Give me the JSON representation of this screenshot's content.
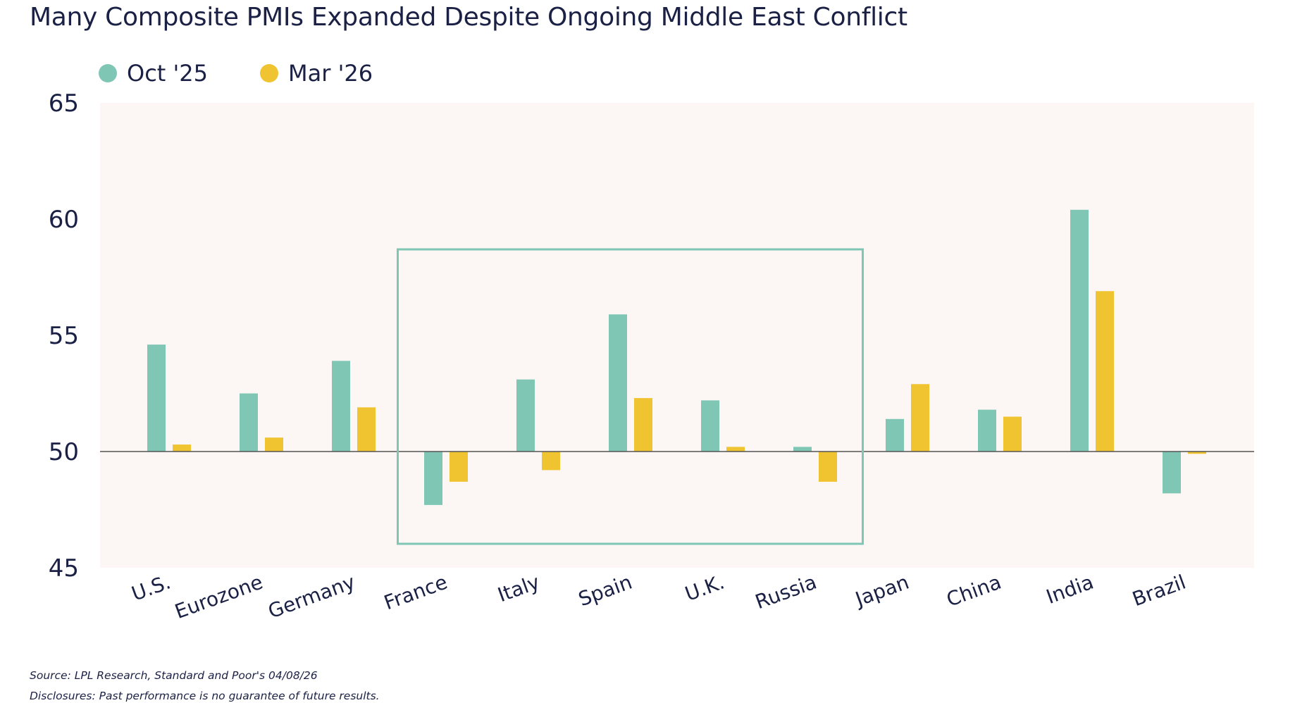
{
  "title": "Many Composite PMIs Expanded Despite Ongoing Middle East Conflict",
  "legend": [
    {
      "label": "Oct '25",
      "color": "#7fc7b4"
    },
    {
      "label": "Mar '26",
      "color": "#f0c330"
    }
  ],
  "colors": {
    "plot_bg": "#fcf7f5",
    "baseline": "#555555",
    "highlight_box": "#7fc7b4",
    "text": "#1b2145"
  },
  "chart_data": {
    "type": "bar",
    "title": "Many Composite PMIs Expanded Despite Ongoing Middle East Conflict",
    "categories": [
      "U.S.",
      "Eurozone",
      "Germany",
      "France",
      "Italy",
      "Spain",
      "U.K.",
      "Russia",
      "Japan",
      "China",
      "India",
      "Brazil"
    ],
    "series": [
      {
        "name": "Oct '25",
        "values": [
          54.6,
          52.5,
          53.9,
          47.7,
          53.1,
          55.9,
          52.2,
          50.2,
          51.4,
          51.8,
          60.4,
          48.2
        ]
      },
      {
        "name": "Mar '26",
        "values": [
          50.3,
          50.6,
          51.9,
          48.7,
          49.2,
          52.3,
          50.2,
          48.7,
          52.9,
          51.5,
          56.9,
          49.9
        ]
      }
    ],
    "baseline": 50,
    "ylim": [
      45,
      65
    ],
    "yticks": [
      "45",
      "50",
      "55",
      "60",
      "65"
    ],
    "highlight": {
      "from": "France",
      "to": "Russia"
    },
    "legend_position": "top-left",
    "grid": false
  },
  "footer": {
    "source": "Source: LPL Research, Standard and Poor's 04/08/26",
    "disclosure": "Disclosures: Past performance is no guarantee of future results."
  }
}
